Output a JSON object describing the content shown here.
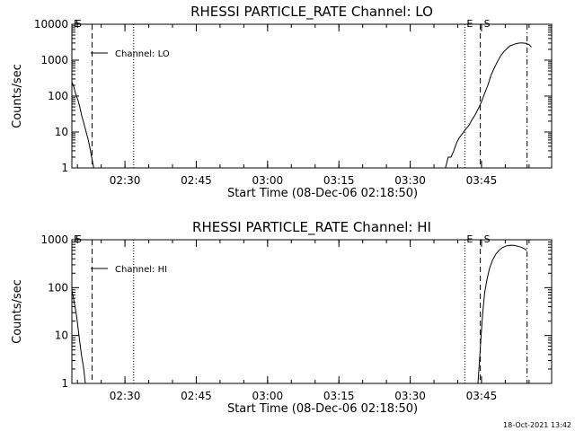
{
  "footer": {
    "timestamp": "18-Oct-2021 13:42"
  },
  "chart_data": [
    {
      "type": "line",
      "title": "RHESSI PARTICLE_RATE Channel: LO",
      "xlabel": "Start Time (08-Dec-06 02:18:50)",
      "ylabel": "Counts/sec",
      "yscale": "log",
      "ylim": [
        1,
        10000
      ],
      "xlim": [
        "02:18:50",
        "03:59:45"
      ],
      "x_ticks": [
        "02:30",
        "02:45",
        "03:00",
        "03:15",
        "03:30",
        "03:45"
      ],
      "y_ticks": [
        "1",
        "10",
        "100",
        "1000",
        "10000"
      ],
      "legend": "Channel: LO",
      "series": [
        {
          "name": "Channel: LO",
          "segments": [
            {
              "x": [
                "02:18:50",
                "02:19:15",
                "02:19:40",
                "02:20:05",
                "02:20:30",
                "02:20:55",
                "02:21:20",
                "02:21:45",
                "02:22:10",
                "02:22:35",
                "02:23:00",
                "02:23:25"
              ],
              "y": [
                250,
                180,
                110,
                80,
                50,
                28,
                18,
                11,
                7,
                4,
                2,
                1
              ]
            },
            {
              "x": [
                "03:37:25",
                "03:38:00",
                "03:38:35",
                "03:39:10",
                "03:39:45",
                "03:40:20",
                "03:41:00",
                "03:41:40",
                "03:42:20",
                "03:43:00",
                "03:43:40",
                "03:44:20",
                "03:45:00",
                "03:45:40",
                "03:46:20",
                "03:47:00",
                "03:47:40",
                "03:48:20",
                "03:49:00",
                "03:49:40",
                "03:50:20",
                "03:51:00",
                "03:51:40",
                "03:52:20",
                "03:53:00",
                "03:53:40",
                "03:54:20",
                "03:55:00",
                "03:55:30"
              ],
              "y": [
                1,
                2,
                2,
                3,
                5,
                7,
                9,
                12,
                15,
                22,
                30,
                45,
                70,
                120,
                200,
                380,
                600,
                900,
                1300,
                1700,
                2100,
                2500,
                2700,
                2900,
                3000,
                3000,
                2950,
                2700,
                2300
              ]
            }
          ]
        }
      ],
      "markers": [
        {
          "label": "E",
          "x": "02:18:50",
          "style": "none"
        },
        {
          "label": "S",
          "x": "02:18:50",
          "style": "none"
        },
        {
          "label": "",
          "x": "02:23:05",
          "style": "dashed"
        },
        {
          "label": "",
          "x": "02:31:50",
          "style": "dotted"
        },
        {
          "label": "E",
          "x": "03:41:30",
          "style": "dotted"
        },
        {
          "label": "S",
          "x": "03:44:45",
          "style": "dashed"
        },
        {
          "label": "",
          "x": "03:54:35",
          "style": "dashdot"
        }
      ]
    },
    {
      "type": "line",
      "title": "RHESSI PARTICLE_RATE Channel: HI",
      "xlabel": "Start Time (08-Dec-06 02:18:50)",
      "ylabel": "Counts/sec",
      "yscale": "log",
      "ylim": [
        1,
        1000
      ],
      "xlim": [
        "02:18:50",
        "03:59:45"
      ],
      "x_ticks": [
        "02:30",
        "02:45",
        "03:00",
        "03:15",
        "03:30",
        "03:45"
      ],
      "y_ticks": [
        "1",
        "10",
        "100",
        "1000"
      ],
      "legend": "Channel: HI",
      "series": [
        {
          "name": "Channel: HI",
          "segments": [
            {
              "x": [
                "02:18:50",
                "02:19:20",
                "02:19:50",
                "02:20:20",
                "02:20:50",
                "02:21:20",
                "02:21:40"
              ],
              "y": [
                90,
                50,
                25,
                10,
                4,
                2,
                1
              ]
            },
            {
              "x": [
                "03:44:15",
                "03:44:35",
                "03:44:55",
                "03:45:15",
                "03:45:40",
                "03:46:10",
                "03:46:40",
                "03:47:20",
                "03:48:00",
                "03:48:40",
                "03:49:20",
                "03:50:00",
                "03:50:40",
                "03:51:20",
                "03:52:00",
                "03:52:40",
                "03:53:20",
                "03:54:00",
                "03:54:30"
              ],
              "y": [
                1,
                3,
                10,
                30,
                80,
                150,
                250,
                380,
                500,
                600,
                680,
                730,
                760,
                770,
                760,
                730,
                700,
                650,
                600
              ]
            }
          ]
        }
      ],
      "markers": [
        {
          "label": "E",
          "x": "02:18:50",
          "style": "none"
        },
        {
          "label": "S",
          "x": "02:18:50",
          "style": "none"
        },
        {
          "label": "",
          "x": "02:23:05",
          "style": "dashed"
        },
        {
          "label": "",
          "x": "02:31:50",
          "style": "dotted"
        },
        {
          "label": "E",
          "x": "03:41:30",
          "style": "dotted"
        },
        {
          "label": "S",
          "x": "03:44:45",
          "style": "dashed"
        },
        {
          "label": "",
          "x": "03:54:35",
          "style": "dashdot"
        }
      ]
    }
  ]
}
